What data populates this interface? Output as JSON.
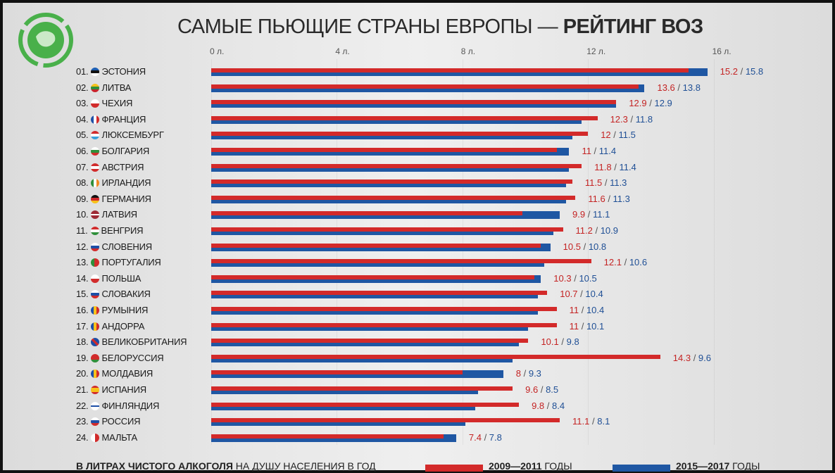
{
  "title": {
    "main": "САМЫЕ ПЬЮЩИЕ СТРАНЫ ЕВРОПЫ — ",
    "bold": "РЕЙТИНГ ВОЗ"
  },
  "colors": {
    "series_2009_2011": "#d32a2a",
    "series_2015_2017": "#1f57a3",
    "logo_green": "#49b04a"
  },
  "footer": {
    "unit_bold": "В ЛИТРАХ ЧИСТОГО АЛКОГОЛЯ",
    "unit_rest": " НА ДУШУ НАСЕЛЕНИЯ В ГОД",
    "legend": [
      {
        "bold": "2009—2011",
        "rest": " ГОДЫ"
      },
      {
        "bold": "2015—2017",
        "rest": " ГОДЫ"
      }
    ]
  },
  "chart_data": {
    "type": "bar",
    "orientation": "horizontal",
    "title": "САМЫЕ ПЬЮЩИЕ СТРАНЫ ЕВРОПЫ — РЕЙТИНГ ВОЗ",
    "xlim": [
      0,
      16
    ],
    "x_ticks": [
      "0 л.",
      "4 л.",
      "8 л.",
      "12 л.",
      "16 л."
    ],
    "x_tick_values": [
      0,
      4,
      8,
      12,
      16
    ],
    "legend_position": "bottom",
    "categories": [
      {
        "rank": "01.",
        "name": "ЭСТОНИЯ",
        "flag": "estonia"
      },
      {
        "rank": "02.",
        "name": "ЛИТВА",
        "flag": "lithuania"
      },
      {
        "rank": "03.",
        "name": "ЧЕХИЯ",
        "flag": "czechia"
      },
      {
        "rank": "04.",
        "name": "ФРАНЦИЯ",
        "flag": "france"
      },
      {
        "rank": "05.",
        "name": "ЛЮКСЕМБУРГ",
        "flag": "luxembourg"
      },
      {
        "rank": "06.",
        "name": "БОЛГАРИЯ",
        "flag": "bulgaria"
      },
      {
        "rank": "07.",
        "name": "АВСТРИЯ",
        "flag": "austria"
      },
      {
        "rank": "08.",
        "name": "ИРЛАНДИЯ",
        "flag": "ireland"
      },
      {
        "rank": "09.",
        "name": "ГЕРМАНИЯ",
        "flag": "germany"
      },
      {
        "rank": "10.",
        "name": "ЛАТВИЯ",
        "flag": "latvia"
      },
      {
        "rank": "11.",
        "name": "ВЕНГРИЯ",
        "flag": "hungary"
      },
      {
        "rank": "12.",
        "name": "СЛОВЕНИЯ",
        "flag": "slovenia"
      },
      {
        "rank": "13.",
        "name": "ПОРТУГАЛИЯ",
        "flag": "portugal"
      },
      {
        "rank": "14.",
        "name": "ПОЛЬША",
        "flag": "poland"
      },
      {
        "rank": "15.",
        "name": "СЛОВАКИЯ",
        "flag": "slovakia"
      },
      {
        "rank": "16.",
        "name": "РУМЫНИЯ",
        "flag": "romania"
      },
      {
        "rank": "17.",
        "name": "АНДОРРА",
        "flag": "andorra"
      },
      {
        "rank": "18.",
        "name": "ВЕЛИКОБРИТАНИЯ",
        "flag": "uk"
      },
      {
        "rank": "19.",
        "name": "БЕЛОРУССИЯ",
        "flag": "belarus"
      },
      {
        "rank": "20.",
        "name": "МОЛДАВИЯ",
        "flag": "moldova"
      },
      {
        "rank": "21.",
        "name": "ИСПАНИЯ",
        "flag": "spain"
      },
      {
        "rank": "22.",
        "name": "ФИНЛЯНДИЯ",
        "flag": "finland"
      },
      {
        "rank": "23.",
        "name": "РОССИЯ",
        "flag": "russia"
      },
      {
        "rank": "24.",
        "name": "МАЛЬТА",
        "flag": "malta"
      }
    ],
    "series": [
      {
        "name": "2009—2011 ГОДЫ",
        "color": "#d32a2a",
        "values": [
          15.2,
          13.6,
          12.9,
          12.3,
          12,
          11,
          11.8,
          11.5,
          11.6,
          9.9,
          11.2,
          10.5,
          12.1,
          10.3,
          10.7,
          11,
          11,
          10.1,
          14.3,
          8,
          9.6,
          9.8,
          11.1,
          7.4
        ]
      },
      {
        "name": "2015—2017 ГОДЫ",
        "color": "#1f57a3",
        "values": [
          15.8,
          13.8,
          12.9,
          11.8,
          11.5,
          11.4,
          11.4,
          11.3,
          11.3,
          11.1,
          10.9,
          10.8,
          10.6,
          10.5,
          10.4,
          10.4,
          10.1,
          9.8,
          9.6,
          9.3,
          8.5,
          8.4,
          8.1,
          7.8
        ]
      }
    ]
  }
}
